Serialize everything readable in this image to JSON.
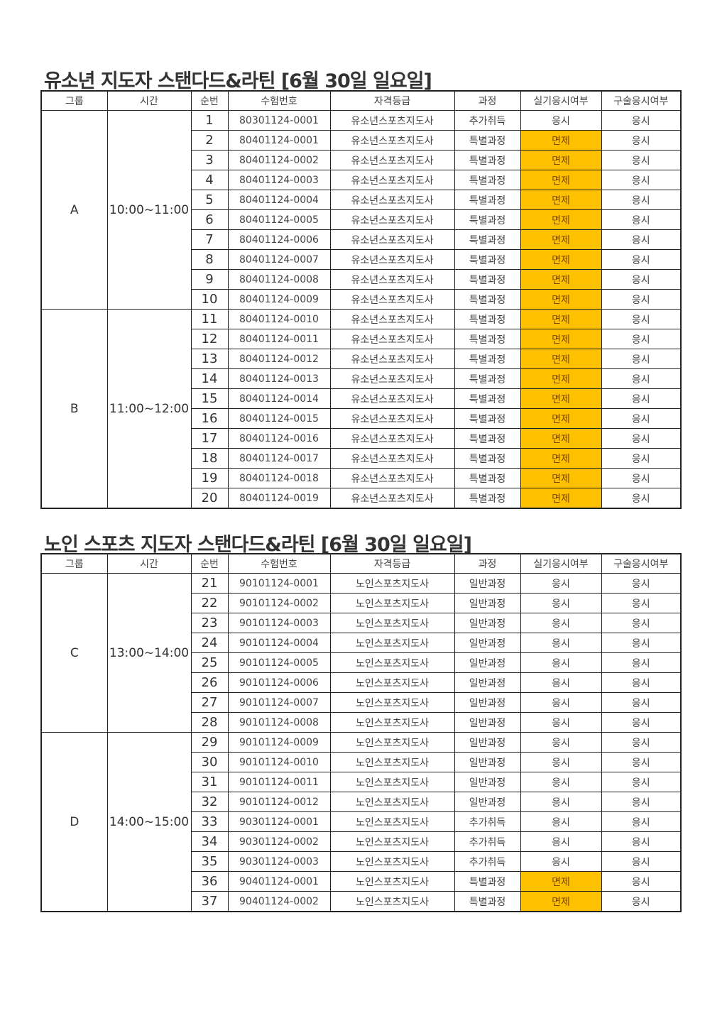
{
  "highlight_color": "#FFC000",
  "headers": [
    "그룹",
    "시간",
    "순번",
    "수험번호",
    "자격등급",
    "과정",
    "실기응시여부",
    "구술응시여부"
  ],
  "sections": [
    {
      "title": "유소년 지도자 스탠다드&라틴 [6월 30일 일요일]",
      "groups": [
        {
          "group": "A",
          "time": "10:00~11:00",
          "rows": [
            [
              "1",
              "80301124-0001",
              "유소년스포츠지도사",
              "추가취득",
              "응시",
              "응시"
            ],
            [
              "2",
              "80401124-0001",
              "유소년스포츠지도사",
              "특별과정",
              "면제",
              "응시"
            ],
            [
              "3",
              "80401124-0002",
              "유소년스포츠지도사",
              "특별과정",
              "면제",
              "응시"
            ],
            [
              "4",
              "80401124-0003",
              "유소년스포츠지도사",
              "특별과정",
              "면제",
              "응시"
            ],
            [
              "5",
              "80401124-0004",
              "유소년스포츠지도사",
              "특별과정",
              "면제",
              "응시"
            ],
            [
              "6",
              "80401124-0005",
              "유소년스포츠지도사",
              "특별과정",
              "면제",
              "응시"
            ],
            [
              "7",
              "80401124-0006",
              "유소년스포츠지도사",
              "특별과정",
              "면제",
              "응시"
            ],
            [
              "8",
              "80401124-0007",
              "유소년스포츠지도사",
              "특별과정",
              "면제",
              "응시"
            ],
            [
              "9",
              "80401124-0008",
              "유소년스포츠지도사",
              "특별과정",
              "면제",
              "응시"
            ],
            [
              "10",
              "80401124-0009",
              "유소년스포츠지도사",
              "특별과정",
              "면제",
              "응시"
            ]
          ]
        },
        {
          "group": "B",
          "time": "11:00~12:00",
          "rows": [
            [
              "11",
              "80401124-0010",
              "유소년스포츠지도사",
              "특별과정",
              "면제",
              "응시"
            ],
            [
              "12",
              "80401124-0011",
              "유소년스포츠지도사",
              "특별과정",
              "면제",
              "응시"
            ],
            [
              "13",
              "80401124-0012",
              "유소년스포츠지도사",
              "특별과정",
              "면제",
              "응시"
            ],
            [
              "14",
              "80401124-0013",
              "유소년스포츠지도사",
              "특별과정",
              "면제",
              "응시"
            ],
            [
              "15",
              "80401124-0014",
              "유소년스포츠지도사",
              "특별과정",
              "면제",
              "응시"
            ],
            [
              "16",
              "80401124-0015",
              "유소년스포츠지도사",
              "특별과정",
              "면제",
              "응시"
            ],
            [
              "17",
              "80401124-0016",
              "유소년스포츠지도사",
              "특별과정",
              "면제",
              "응시"
            ],
            [
              "18",
              "80401124-0017",
              "유소년스포츠지도사",
              "특별과정",
              "면제",
              "응시"
            ],
            [
              "19",
              "80401124-0018",
              "유소년스포츠지도사",
              "특별과정",
              "면제",
              "응시"
            ],
            [
              "20",
              "80401124-0019",
              "유소년스포츠지도사",
              "특별과정",
              "면제",
              "응시"
            ]
          ]
        }
      ]
    },
    {
      "title": "노인 스포츠 지도자 스탠다드&라틴 [6월 30일 일요일]",
      "groups": [
        {
          "group": "C",
          "time": "13:00~14:00",
          "rows": [
            [
              "21",
              "90101124-0001",
              "노인스포츠지도사",
              "일반과정",
              "응시",
              "응시"
            ],
            [
              "22",
              "90101124-0002",
              "노인스포츠지도사",
              "일반과정",
              "응시",
              "응시"
            ],
            [
              "23",
              "90101124-0003",
              "노인스포츠지도사",
              "일반과정",
              "응시",
              "응시"
            ],
            [
              "24",
              "90101124-0004",
              "노인스포츠지도사",
              "일반과정",
              "응시",
              "응시"
            ],
            [
              "25",
              "90101124-0005",
              "노인스포츠지도사",
              "일반과정",
              "응시",
              "응시"
            ],
            [
              "26",
              "90101124-0006",
              "노인스포츠지도사",
              "일반과정",
              "응시",
              "응시"
            ],
            [
              "27",
              "90101124-0007",
              "노인스포츠지도사",
              "일반과정",
              "응시",
              "응시"
            ],
            [
              "28",
              "90101124-0008",
              "노인스포츠지도사",
              "일반과정",
              "응시",
              "응시"
            ]
          ]
        },
        {
          "group": "D",
          "time": "14:00~15:00",
          "rows": [
            [
              "29",
              "90101124-0009",
              "노인스포츠지도사",
              "일반과정",
              "응시",
              "응시"
            ],
            [
              "30",
              "90101124-0010",
              "노인스포츠지도사",
              "일반과정",
              "응시",
              "응시"
            ],
            [
              "31",
              "90101124-0011",
              "노인스포츠지도사",
              "일반과정",
              "응시",
              "응시"
            ],
            [
              "32",
              "90101124-0012",
              "노인스포츠지도사",
              "일반과정",
              "응시",
              "응시"
            ],
            [
              "33",
              "90301124-0001",
              "노인스포츠지도사",
              "추가취득",
              "응시",
              "응시"
            ],
            [
              "34",
              "90301124-0002",
              "노인스포츠지도사",
              "추가취득",
              "응시",
              "응시"
            ],
            [
              "35",
              "90301124-0003",
              "노인스포츠지도사",
              "추가취득",
              "응시",
              "응시"
            ],
            [
              "36",
              "90401124-0001",
              "노인스포츠지도사",
              "특별과정",
              "면제",
              "응시"
            ],
            [
              "37",
              "90401124-0002",
              "노인스포츠지도사",
              "특별과정",
              "면제",
              "응시"
            ]
          ]
        }
      ]
    }
  ]
}
